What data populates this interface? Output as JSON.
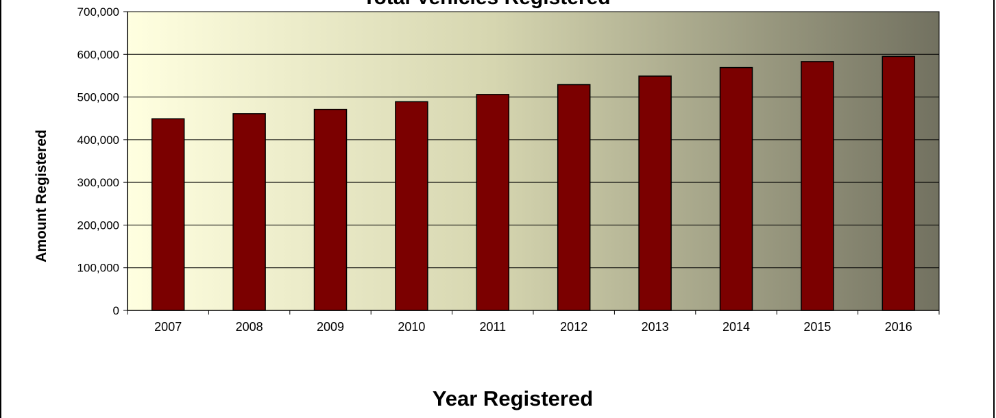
{
  "chart_data": {
    "type": "bar",
    "title": "Total Vehicles Registered",
    "xlabel": "Year Registered",
    "ylabel": "Amount Registered",
    "categories": [
      "2007",
      "2008",
      "2009",
      "2010",
      "2011",
      "2012",
      "2013",
      "2014",
      "2015",
      "2016"
    ],
    "series": [
      {
        "values": [
          449000,
          461000,
          471000,
          489000,
          506000,
          529000,
          549000,
          569000,
          583000,
          595000
        ]
      }
    ],
    "ylim": [
      0,
      700000
    ],
    "yticks": [
      0,
      100000,
      200000,
      300000,
      400000,
      500000,
      600000,
      700000
    ],
    "ytick_labels": [
      "0",
      "100,000",
      "200,000",
      "300,000",
      "400,000",
      "500,000",
      "600,000",
      "700,000"
    ],
    "grid": "horizontal",
    "legend": "none",
    "colors": {
      "bar_fill": "#7b0000",
      "bar_stroke": "#000000",
      "plot_gradient_start": "#ffffe0",
      "plot_gradient_mid": "#d6d6b0",
      "plot_gradient_end": "#727160",
      "gridline": "#000000"
    }
  }
}
